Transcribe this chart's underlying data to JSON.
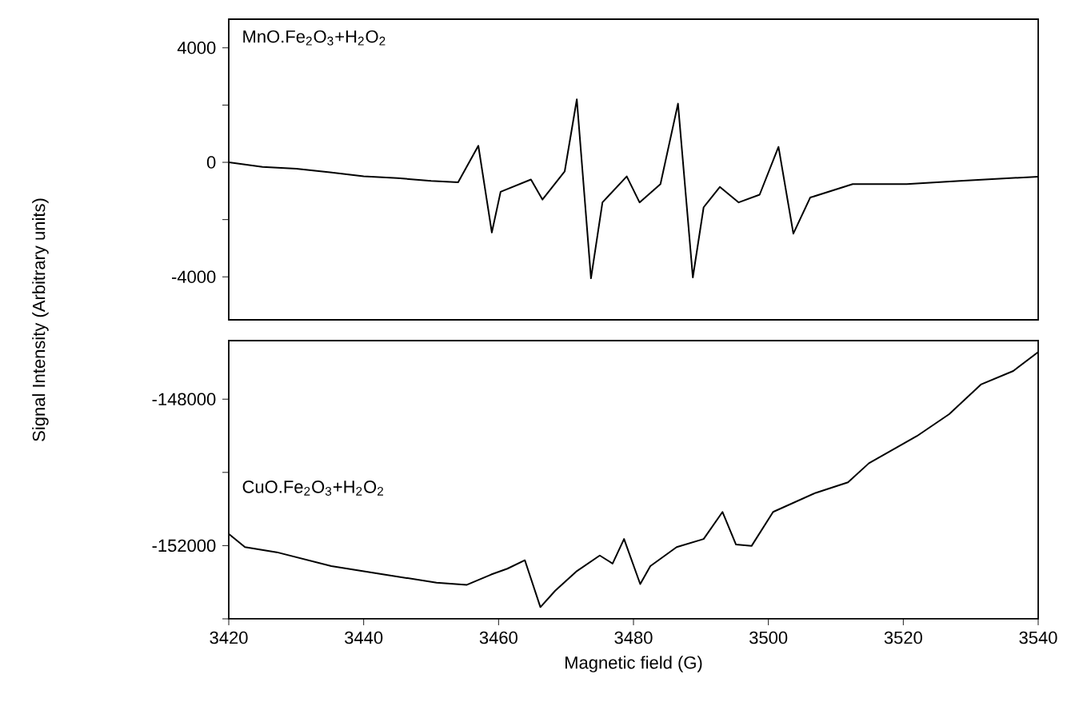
{
  "chart_data": [
    {
      "type": "line",
      "xlim": [
        3420,
        3540
      ],
      "xticks": [
        3420,
        3440,
        3460,
        3480,
        3500,
        3520,
        3540
      ],
      "ylim": [
        -5500,
        5000
      ],
      "yticks": [
        4000,
        {
          "value": 2000,
          "label": null
        },
        0,
        {
          "value": -2000,
          "label": null
        },
        -4000
      ],
      "tick_labels": "y",
      "ylabel": "Signal Intensity (Arbitrary units)",
      "legend": "top left",
      "x": [
        3420,
        3425,
        3430,
        3435,
        3440,
        3445,
        3450,
        3454,
        3457,
        3459,
        3460.3,
        3464.8,
        3466.5,
        3469.8,
        3471.6,
        3473.7,
        3475.4,
        3479,
        3480.9,
        3484,
        3486.6,
        3488.8,
        3490.4,
        3492.8,
        3495.6,
        3498.7,
        3501.5,
        3503.7,
        3506.2,
        3512.5,
        3520.5,
        3528.4,
        3540
      ],
      "series": [
        {
          "name": "MnO.Fe$_{2}$O$_{3}$+H$_{2}$O$_{2}$",
          "color": "#000000",
          "values": [
            0,
            -160,
            -220,
            -350,
            -490,
            -550,
            -650,
            -700,
            580,
            -2450,
            -1030,
            -600,
            -1300,
            -320,
            2200,
            -4050,
            -1400,
            -490,
            -1400,
            -760,
            2050,
            -4020,
            -1570,
            -860,
            -1400,
            -1130,
            540,
            -2490,
            -1230,
            -760,
            -760,
            -650,
            -500
          ]
        }
      ]
    },
    {
      "type": "line",
      "xlim": [
        3420,
        3540
      ],
      "xticks": [
        3420,
        3440,
        3460,
        3480,
        3500,
        3520,
        3540
      ],
      "ylim": [
        -154000,
        -146400
      ],
      "yticks": [
        {
          "value": -154000,
          "label": null
        },
        -152000,
        {
          "value": -150000,
          "label": null
        },
        -148000
      ],
      "xlabel": "Magnetic field (G)",
      "legend": "left",
      "x": [
        3420,
        3422.4,
        3427.1,
        3435.2,
        3443,
        3450.8,
        3455.3,
        3458.9,
        3461.3,
        3463.9,
        3466.2,
        3468.4,
        3471.5,
        3475,
        3476.9,
        3478.6,
        3481,
        3482.5,
        3486.4,
        3490.4,
        3493.2,
        3495.2,
        3497.5,
        3500.7,
        3507,
        3511.8,
        3514.9,
        3522,
        3526.8,
        3531.5,
        3536.3,
        3540
      ],
      "series": [
        {
          "name": "CuO.Fe$_{2}$O$_{3}$+H$_{2}$O$_{2}$",
          "color": "#000000",
          "values": [
            -151680,
            -152040,
            -152180,
            -152560,
            -152790,
            -153010,
            -153070,
            -152790,
            -152630,
            -152400,
            -153680,
            -153230,
            -152710,
            -152270,
            -152490,
            -151820,
            -153050,
            -152560,
            -152040,
            -151820,
            -151080,
            -151970,
            -152010,
            -151080,
            -150560,
            -150270,
            -149750,
            -149010,
            -148410,
            -147600,
            -147230,
            -146710
          ]
        }
      ]
    }
  ]
}
